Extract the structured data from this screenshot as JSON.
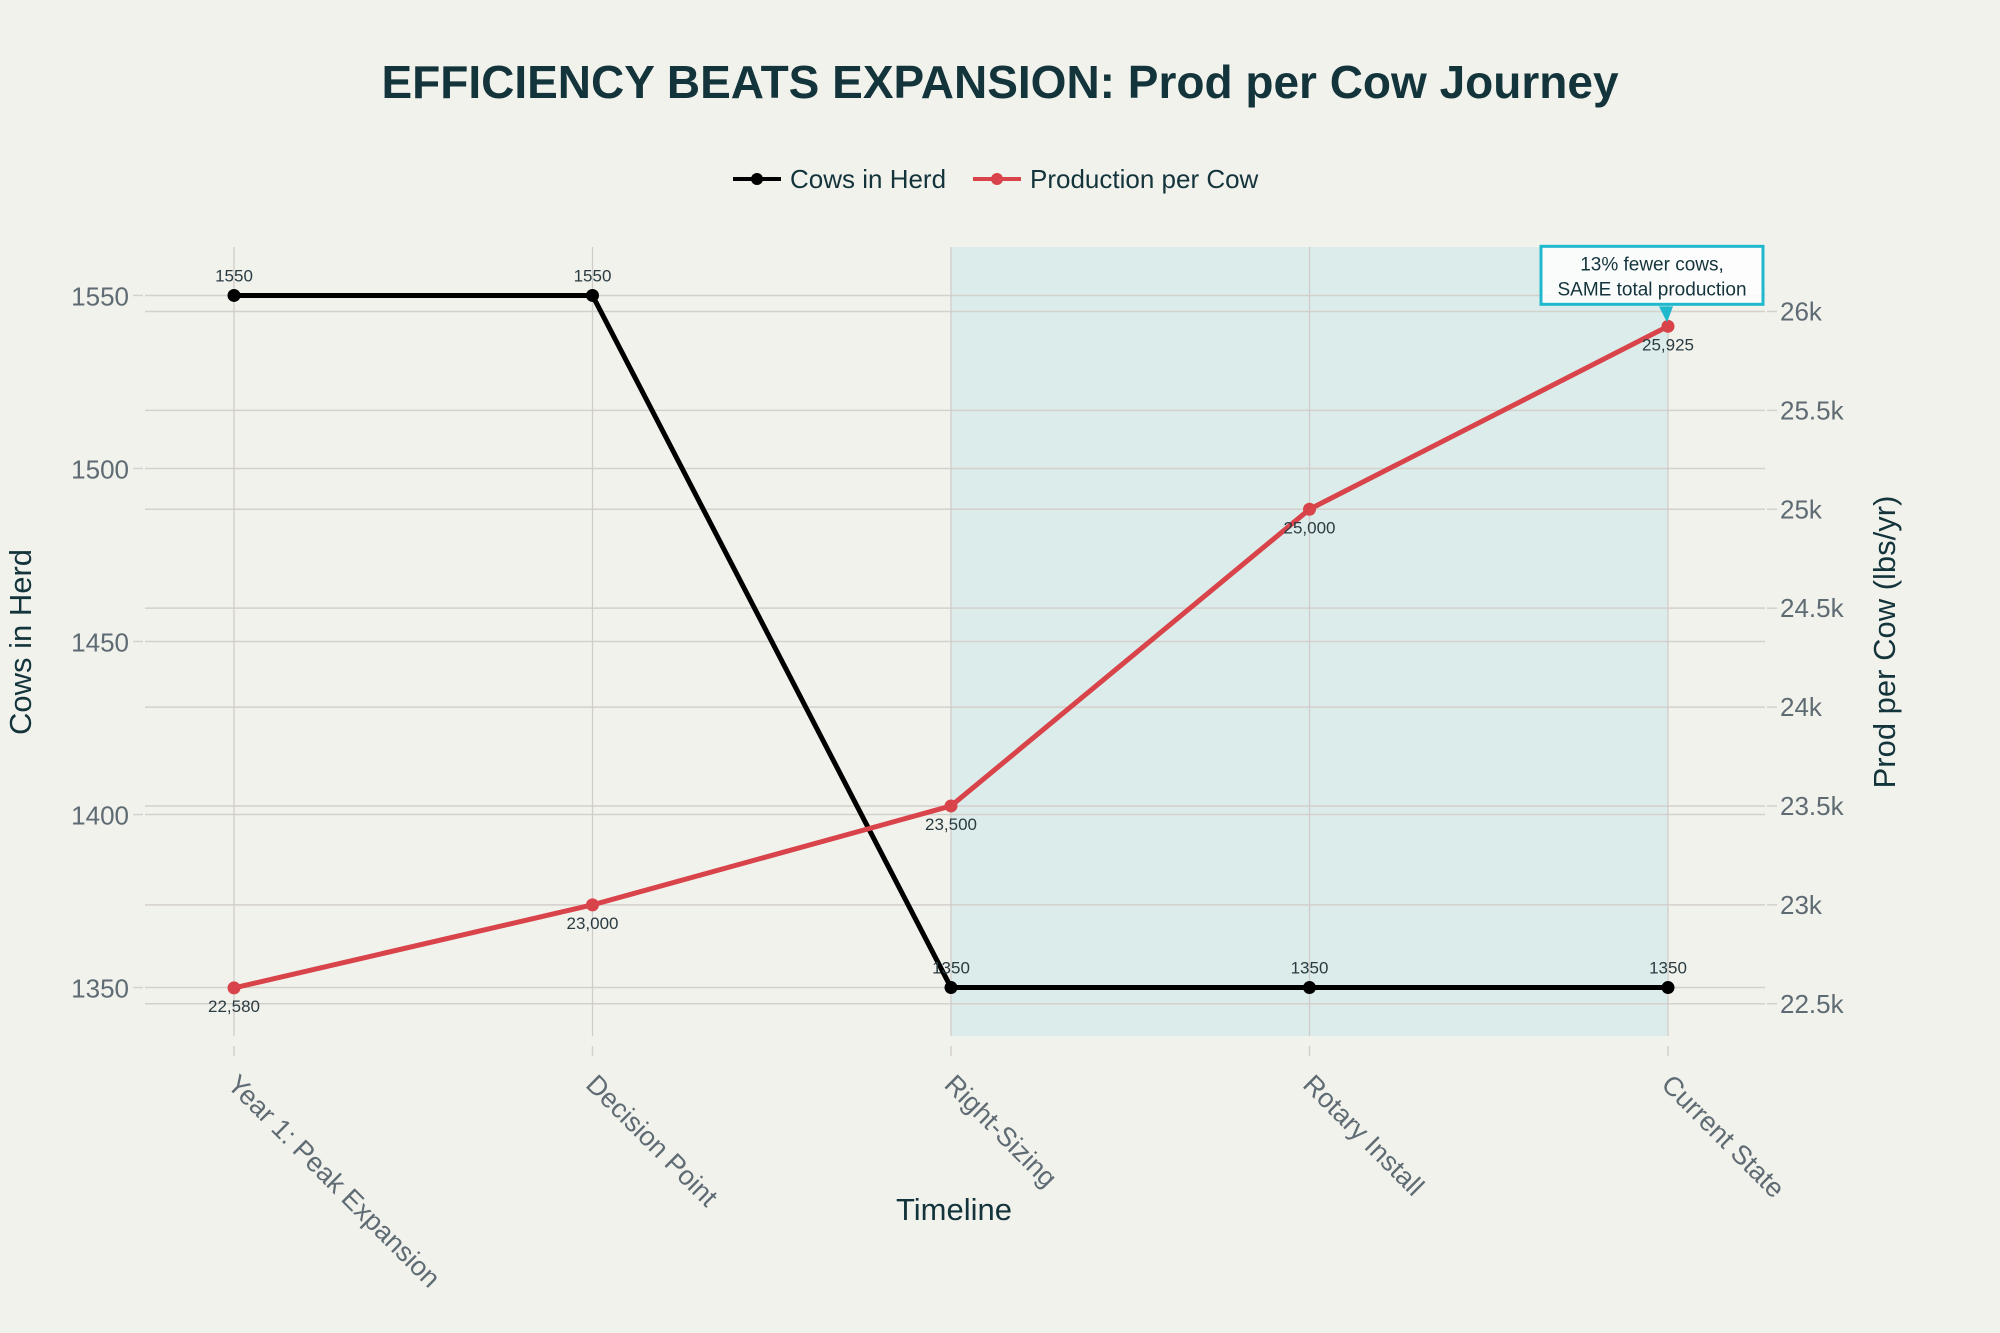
{
  "chart_data": {
    "type": "line",
    "title": "EFFICIENCY BEATS EXPANSION: Prod per Cow Journey",
    "xlabel": "Timeline",
    "ylabel": "Cows in Herd",
    "y2label": "Prod per Cow (lbs/yr)",
    "categories": [
      "Year 1: Peak Expansion",
      "Decision Point",
      "Right-Sizing",
      "Rotary Install",
      "Current State"
    ],
    "legend": {
      "placement": "top-center"
    },
    "grid": true,
    "series": [
      {
        "name": "Cows in Herd",
        "axis": "left",
        "color": "#000000",
        "values": [
          1550,
          1550,
          1350,
          1350,
          1350
        ],
        "labels": [
          "1550",
          "1550",
          "1350",
          "1350",
          "1350"
        ]
      },
      {
        "name": "Production per Cow",
        "axis": "right",
        "color": "#d9434a",
        "values": [
          22580,
          23000,
          23500,
          25000,
          25925
        ],
        "labels": [
          "22,580",
          "23,000",
          "23,500",
          "25,000",
          "25,925"
        ]
      }
    ],
    "y_ticks": [
      1350,
      1400,
      1450,
      1500,
      1550
    ],
    "y_tick_labels": [
      "1350",
      "1400",
      "1450",
      "1500",
      "1550"
    ],
    "ylim": [
      1336,
      1564
    ],
    "y2_ticks": [
      22500,
      23000,
      23500,
      24000,
      24500,
      25000,
      25500,
      26000
    ],
    "y2_tick_labels": [
      "22.5k",
      "23k",
      "23.5k",
      "24k",
      "24.5k",
      "25k",
      "25.5k",
      "26k"
    ],
    "y2lim": [
      22337,
      26326
    ],
    "highlight_region": {
      "from": "Right-Sizing",
      "to": "Current State",
      "color": "#d6eaea"
    },
    "annotation": {
      "lines": [
        "13% fewer cows,",
        "SAME total production"
      ],
      "target": "Current State",
      "series": "Production per Cow",
      "border_color": "#1fb8cd"
    }
  }
}
